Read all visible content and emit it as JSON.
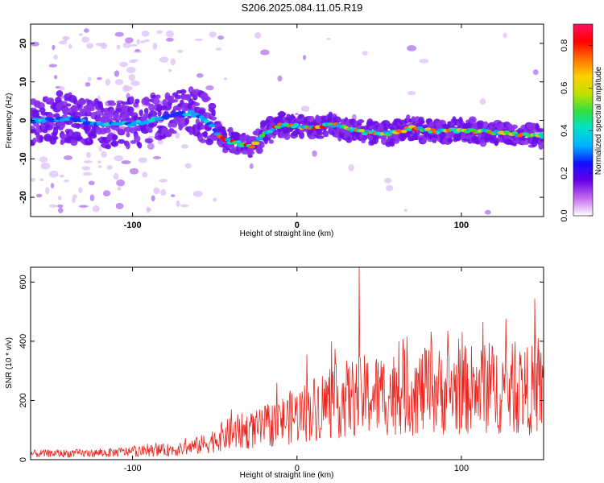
{
  "title": "S206.2025.084.11.05.R19",
  "colors": {
    "line": "#e8261f",
    "frame": "#000000"
  },
  "chart_data": [
    {
      "type": "heatmap",
      "xlabel": "Height of straight line (km)",
      "ylabel": "Frequency (Hz)",
      "xlim": [
        -162,
        150
      ],
      "ylim": [
        -25,
        25
      ],
      "xticks": [
        -100,
        0,
        100
      ],
      "yticks": [
        -20,
        -10,
        0,
        10,
        20
      ],
      "colorbar": {
        "label": "Normalized spectral amplitude",
        "range": [
          0,
          0.9
        ],
        "ticks": [
          "0.0",
          "0.2",
          "0.4",
          "0.6",
          "0.8"
        ],
        "colors": [
          "#ffffff",
          "#c46cf0",
          "#6a00e6",
          "#1010ff",
          "#00b0ff",
          "#00e0d0",
          "#30e040",
          "#c0e000",
          "#ffd000",
          "#ff7000",
          "#ff0000",
          "#ff1060"
        ]
      },
      "ridge": [
        {
          "x": -155,
          "y": 0
        },
        {
          "x": -140,
          "y": 0.5
        },
        {
          "x": -120,
          "y": -1
        },
        {
          "x": -100,
          "y": -1
        },
        {
          "x": -80,
          "y": 1
        },
        {
          "x": -65,
          "y": 2
        },
        {
          "x": -55,
          "y": 0
        },
        {
          "x": -45,
          "y": -5
        },
        {
          "x": -35,
          "y": -6
        },
        {
          "x": -28,
          "y": -7
        },
        {
          "x": -18,
          "y": -3
        },
        {
          "x": -8,
          "y": -1
        },
        {
          "x": 0,
          "y": -1.5
        },
        {
          "x": 10,
          "y": -2
        },
        {
          "x": 20,
          "y": -1
        },
        {
          "x": 30,
          "y": -2
        },
        {
          "x": 40,
          "y": -3
        },
        {
          "x": 55,
          "y": -3.5
        },
        {
          "x": 70,
          "y": -2
        },
        {
          "x": 85,
          "y": -3
        },
        {
          "x": 100,
          "y": -2.5
        },
        {
          "x": 115,
          "y": -3
        },
        {
          "x": 130,
          "y": -3.5
        },
        {
          "x": 145,
          "y": -4
        }
      ]
    },
    {
      "type": "line",
      "xlabel": "Height of straight line (km)",
      "ylabel": "SNR (10 * v/v)",
      "xlim": [
        -162,
        150
      ],
      "ylim": [
        0,
        650
      ],
      "xticks": [
        -100,
        0,
        100
      ],
      "yticks": [
        0,
        200,
        400,
        600
      ],
      "trend": [
        {
          "x": -162,
          "y": 20
        },
        {
          "x": -120,
          "y": 22
        },
        {
          "x": -90,
          "y": 30
        },
        {
          "x": -70,
          "y": 35
        },
        {
          "x": -55,
          "y": 55
        },
        {
          "x": -45,
          "y": 80
        },
        {
          "x": -35,
          "y": 95
        },
        {
          "x": -25,
          "y": 100
        },
        {
          "x": -15,
          "y": 120
        },
        {
          "x": -5,
          "y": 140
        },
        {
          "x": 5,
          "y": 160
        },
        {
          "x": 15,
          "y": 185
        },
        {
          "x": 25,
          "y": 200
        },
        {
          "x": 40,
          "y": 215
        },
        {
          "x": 60,
          "y": 225
        },
        {
          "x": 80,
          "y": 230
        },
        {
          "x": 100,
          "y": 235
        },
        {
          "x": 120,
          "y": 240
        },
        {
          "x": 150,
          "y": 235
        }
      ],
      "peaks": [
        {
          "x": -40,
          "y": 170
        },
        {
          "x": 6,
          "y": 355
        },
        {
          "x": 38,
          "y": 650
        },
        {
          "x": 62,
          "y": 400
        },
        {
          "x": 82,
          "y": 395
        },
        {
          "x": 113,
          "y": 465
        },
        {
          "x": 140,
          "y": 380
        }
      ]
    }
  ]
}
